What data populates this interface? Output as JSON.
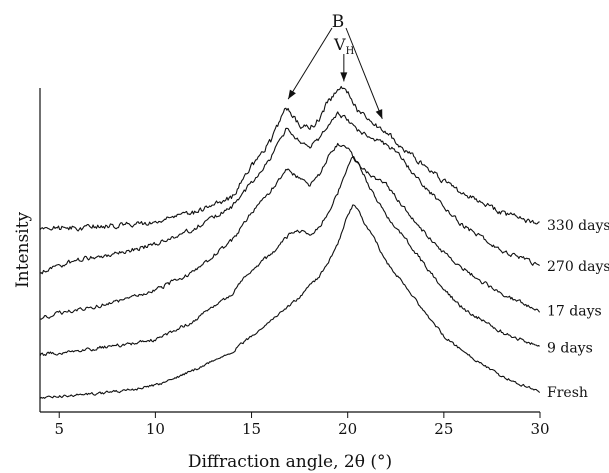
{
  "chart_data": {
    "type": "line",
    "xlabel": "Diffraction angle, 2θ (°)",
    "ylabel": "Intensity",
    "xlim": [
      4,
      30
    ],
    "x_ticks": [
      5,
      10,
      15,
      20,
      25,
      30
    ],
    "x_tick_labels": [
      "5",
      "10",
      "15",
      "20",
      "25",
      "30"
    ],
    "y_ticks_shown": false,
    "offset_stacked": true,
    "annotations": [
      {
        "label": "B",
        "targets_x": [
          16.8,
          21.8
        ]
      },
      {
        "label": "V",
        "subscript": "H",
        "target_x": 19.8
      }
    ],
    "series": [
      {
        "name": "Fresh",
        "x": [
          4,
          6,
          8,
          10,
          12,
          14,
          15,
          16,
          17,
          17.5,
          18,
          18.5,
          19,
          19.5,
          20,
          20.3,
          20.6,
          21,
          21.5,
          22,
          23,
          24,
          25,
          26,
          28,
          30
        ],
        "y": [
          0,
          2,
          4,
          8,
          18,
          30,
          40,
          50,
          60,
          65,
          72,
          78,
          88,
          100,
          118,
          125,
          120,
          110,
          100,
          88,
          72,
          55,
          40,
          30,
          14,
          4
        ]
      },
      {
        "name": "9 days",
        "x": [
          4,
          6,
          8,
          10,
          12,
          14,
          15,
          16,
          17,
          17.5,
          18,
          18.5,
          19,
          19.5,
          20,
          20.3,
          20.6,
          21,
          21.5,
          22,
          23,
          24,
          25,
          26,
          28,
          30
        ],
        "y": [
          0,
          3,
          6,
          10,
          22,
          40,
          55,
          65,
          78,
          80,
          78,
          82,
          92,
          105,
          122,
          128,
          122,
          112,
          100,
          90,
          75,
          58,
          42,
          30,
          15,
          5
        ]
      },
      {
        "name": "17 days",
        "x": [
          4,
          6,
          8,
          10,
          12,
          14,
          15,
          16,
          16.8,
          17.5,
          18,
          18.5,
          19,
          19.5,
          20,
          20.5,
          21,
          21.5,
          22,
          23,
          24,
          25,
          26,
          28,
          30
        ],
        "y": [
          0,
          6,
          10,
          18,
          30,
          50,
          68,
          82,
          96,
          90,
          86,
          92,
          104,
          112,
          110,
          100,
          94,
          90,
          86,
          70,
          55,
          42,
          32,
          15,
          5
        ]
      },
      {
        "name": "270 days",
        "x": [
          4,
          6,
          8,
          10,
          12,
          14,
          15,
          16,
          16.8,
          17.5,
          18,
          18.5,
          19,
          19.5,
          20,
          20.5,
          21,
          21.8,
          22.5,
          23,
          24,
          25,
          26,
          28,
          30
        ],
        "y": [
          0,
          8,
          12,
          18,
          28,
          42,
          58,
          74,
          92,
          84,
          80,
          86,
          96,
          102,
          98,
          92,
          88,
          84,
          78,
          70,
          55,
          42,
          30,
          14,
          4
        ]
      },
      {
        "name": "330 days",
        "x": [
          4,
          6,
          8,
          10,
          12,
          14,
          15,
          16,
          16.8,
          17.5,
          18,
          18.5,
          19,
          19.5,
          19.8,
          20.5,
          21,
          21.8,
          22.5,
          23,
          24,
          25,
          26,
          28,
          30
        ],
        "y": [
          0,
          0,
          2,
          4,
          10,
          20,
          40,
          56,
          78,
          66,
          64,
          70,
          82,
          88,
          92,
          76,
          70,
          64,
          56,
          50,
          40,
          30,
          22,
          10,
          2
        ]
      }
    ]
  }
}
